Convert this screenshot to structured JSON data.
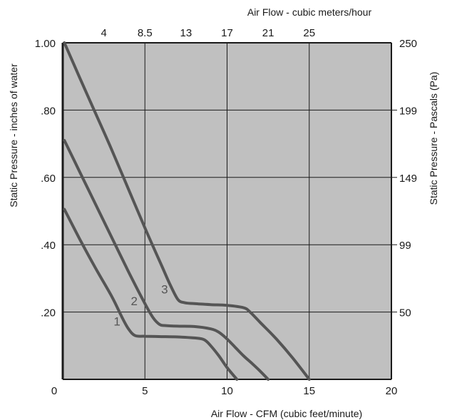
{
  "chart_data": {
    "type": "line",
    "title": "",
    "xlabel_bottom": "Air Flow - CFM (cubic feet/minute)",
    "xlabel_top": "Air Flow - cubic meters/hour",
    "ylabel_left": "Static Pressure - inches of water",
    "ylabel_right": "Static Pressure - Pascals (Pa)",
    "xlim": [
      0,
      20
    ],
    "ylim": [
      0,
      1.0
    ],
    "grid": true,
    "x_ticks": [
      "0",
      "5",
      "10",
      "15",
      "20"
    ],
    "x_tick_values": [
      0,
      5,
      10,
      15,
      20
    ],
    "top_ticks": [
      "4",
      "8.5",
      "13",
      "17",
      "21",
      "25"
    ],
    "top_tick_values": [
      2.5,
      5,
      7.5,
      10,
      12.5,
      15
    ],
    "y_ticks_left": [
      ".20",
      ".40",
      ".60",
      ".80",
      "1.00"
    ],
    "y_tick_values": [
      0.2,
      0.4,
      0.6,
      0.8,
      1.0
    ],
    "y_ticks_right": [
      "50",
      "99",
      "149",
      "199",
      "250"
    ],
    "series": [
      {
        "name": "1",
        "x": [
          0.1,
          1.0,
          2.0,
          3.0,
          3.6,
          4.0,
          4.4,
          5.0,
          6.0,
          7.0,
          8.0,
          8.6,
          9.0,
          9.5,
          10.0,
          10.6
        ],
        "y": [
          0.505,
          0.42,
          0.33,
          0.245,
          0.185,
          0.15,
          0.13,
          0.128,
          0.127,
          0.126,
          0.123,
          0.118,
          0.1,
          0.07,
          0.035,
          0.0
        ]
      },
      {
        "name": "2",
        "x": [
          0.1,
          1.0,
          2.0,
          3.0,
          4.0,
          5.0,
          5.5,
          5.9,
          6.2,
          7.0,
          8.0,
          9.0,
          9.5,
          10.0,
          10.5,
          11.0,
          11.5,
          12.0,
          12.5
        ],
        "y": [
          0.71,
          0.62,
          0.52,
          0.42,
          0.32,
          0.225,
          0.183,
          0.163,
          0.16,
          0.158,
          0.157,
          0.15,
          0.14,
          0.12,
          0.095,
          0.07,
          0.048,
          0.025,
          0.0
        ]
      },
      {
        "name": "3",
        "x": [
          0.1,
          1.0,
          2.0,
          3.0,
          4.0,
          5.0,
          6.0,
          6.5,
          7.0,
          7.4,
          8.0,
          9.0,
          10.0,
          11.0,
          11.4,
          12.0,
          13.0,
          14.0,
          15.0
        ],
        "y": [
          1.0,
          0.9,
          0.79,
          0.68,
          0.565,
          0.45,
          0.34,
          0.285,
          0.238,
          0.228,
          0.225,
          0.222,
          0.22,
          0.213,
          0.2,
          0.17,
          0.12,
          0.063,
          0.0
        ]
      }
    ],
    "curve_labels": [
      {
        "text": "1",
        "x": 3.3,
        "y": 0.16
      },
      {
        "text": "2",
        "x": 4.35,
        "y": 0.22
      },
      {
        "text": "3",
        "x": 6.2,
        "y": 0.255
      }
    ],
    "colors": {
      "plot_background": "#c0c0c0",
      "line": "#555555",
      "grid": "#1a1a1a",
      "curve_label": "#555555"
    }
  }
}
